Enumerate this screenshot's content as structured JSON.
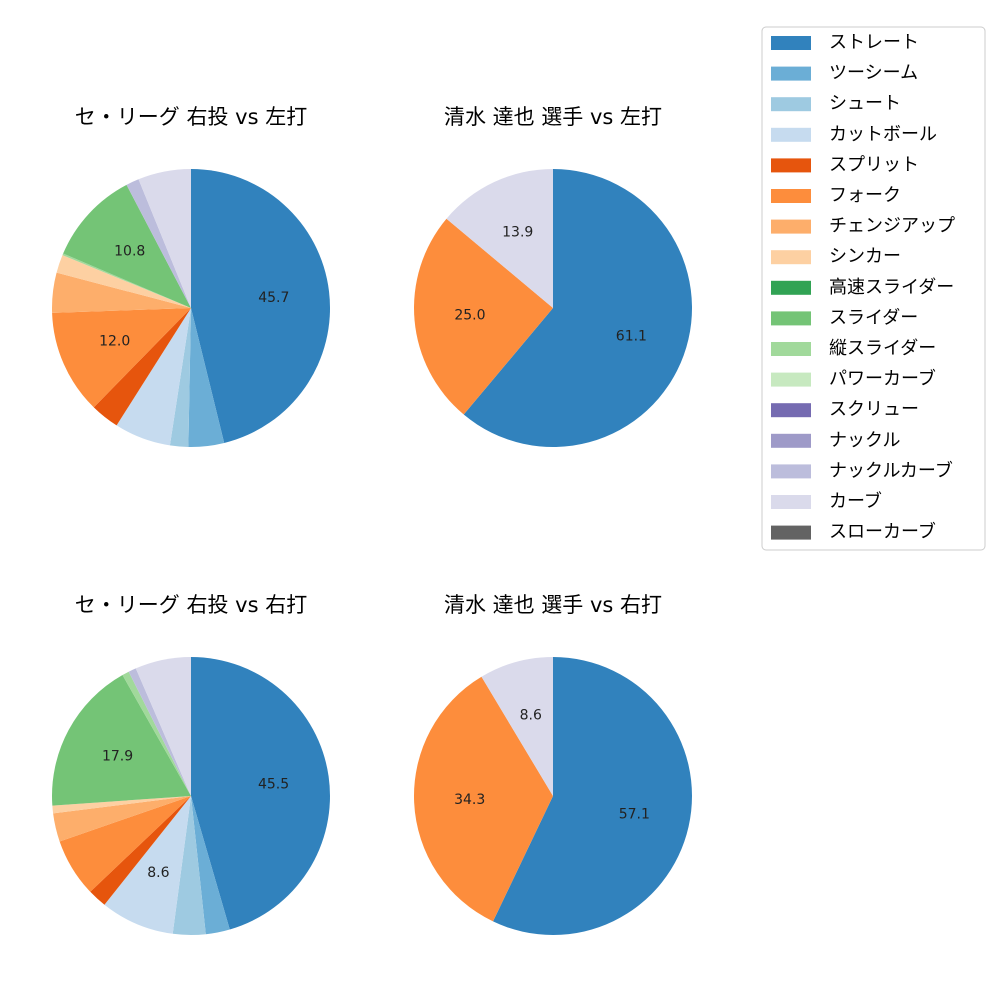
{
  "legend": {
    "entries": [
      {
        "label": "ストレート",
        "color": "#3182bd"
      },
      {
        "label": "ツーシーム",
        "color": "#6baed6"
      },
      {
        "label": "シュート",
        "color": "#9ecae1"
      },
      {
        "label": "カットボール",
        "color": "#c6dbef"
      },
      {
        "label": "スプリット",
        "color": "#e6550d"
      },
      {
        "label": "フォーク",
        "color": "#fd8d3c"
      },
      {
        "label": "チェンジアップ",
        "color": "#fdae6b"
      },
      {
        "label": "シンカー",
        "color": "#fdd0a2"
      },
      {
        "label": "高速スライダー",
        "color": "#31a354"
      },
      {
        "label": "スライダー",
        "color": "#74c476"
      },
      {
        "label": "縦スライダー",
        "color": "#a1d99b"
      },
      {
        "label": "パワーカーブ",
        "color": "#c7e9c0"
      },
      {
        "label": "スクリュー",
        "color": "#756bb1"
      },
      {
        "label": "ナックル",
        "color": "#9e9ac8"
      },
      {
        "label": "ナックルカーブ",
        "color": "#bcbddc"
      },
      {
        "label": "カーブ",
        "color": "#dadaeb"
      },
      {
        "label": "スローカーブ",
        "color": "#636363"
      }
    ]
  },
  "chart_data": [
    {
      "type": "pie",
      "title": "セ・リーグ 右投 vs 左打",
      "slices": [
        {
          "label": "ストレート",
          "value": 45.7,
          "display": "45.7"
        },
        {
          "label": "ツーシーム",
          "value": 4.1,
          "display": ""
        },
        {
          "label": "シュート",
          "value": 2.1,
          "display": ""
        },
        {
          "label": "カットボール",
          "value": 6.5,
          "display": ""
        },
        {
          "label": "スプリット",
          "value": 3.3,
          "display": ""
        },
        {
          "label": "フォーク",
          "value": 12.0,
          "display": "12.0"
        },
        {
          "label": "チェンジアップ",
          "value": 4.6,
          "display": ""
        },
        {
          "label": "シンカー",
          "value": 2.1,
          "display": ""
        },
        {
          "label": "縦スライダー",
          "value": 0.2,
          "display": ""
        },
        {
          "label": "スライダー",
          "value": 10.8,
          "display": "10.8"
        },
        {
          "label": "ナックルカーブ",
          "value": 1.5,
          "display": ""
        },
        {
          "label": "カーブ",
          "value": 6.1,
          "display": ""
        }
      ]
    },
    {
      "type": "pie",
      "title": "清水 達也 選手 vs 左打",
      "slices": [
        {
          "label": "ストレート",
          "value": 61.1,
          "display": "61.1"
        },
        {
          "label": "フォーク",
          "value": 25.0,
          "display": "25.0"
        },
        {
          "label": "カーブ",
          "value": 13.9,
          "display": "13.9"
        }
      ]
    },
    {
      "type": "pie",
      "title": "セ・リーグ 右投 vs 右打",
      "slices": [
        {
          "label": "ストレート",
          "value": 45.5,
          "display": "45.5"
        },
        {
          "label": "ツーシーム",
          "value": 2.8,
          "display": ""
        },
        {
          "label": "シュート",
          "value": 3.8,
          "display": ""
        },
        {
          "label": "カットボール",
          "value": 8.6,
          "display": "8.6"
        },
        {
          "label": "スプリット",
          "value": 2.2,
          "display": ""
        },
        {
          "label": "フォーク",
          "value": 6.8,
          "display": ""
        },
        {
          "label": "チェンジアップ",
          "value": 3.3,
          "display": ""
        },
        {
          "label": "シンカー",
          "value": 0.9,
          "display": ""
        },
        {
          "label": "スライダー",
          "value": 17.9,
          "display": "17.9"
        },
        {
          "label": "縦スライダー",
          "value": 0.8,
          "display": ""
        },
        {
          "label": "ナックルカーブ",
          "value": 0.9,
          "display": ""
        },
        {
          "label": "カーブ",
          "value": 6.5,
          "display": ""
        }
      ]
    },
    {
      "type": "pie",
      "title": "清水 達也 選手 vs 右打",
      "slices": [
        {
          "label": "ストレート",
          "value": 57.1,
          "display": "57.1"
        },
        {
          "label": "フォーク",
          "value": 34.3,
          "display": "34.3"
        },
        {
          "label": "カーブ",
          "value": 8.6,
          "display": "8.6"
        }
      ]
    }
  ]
}
